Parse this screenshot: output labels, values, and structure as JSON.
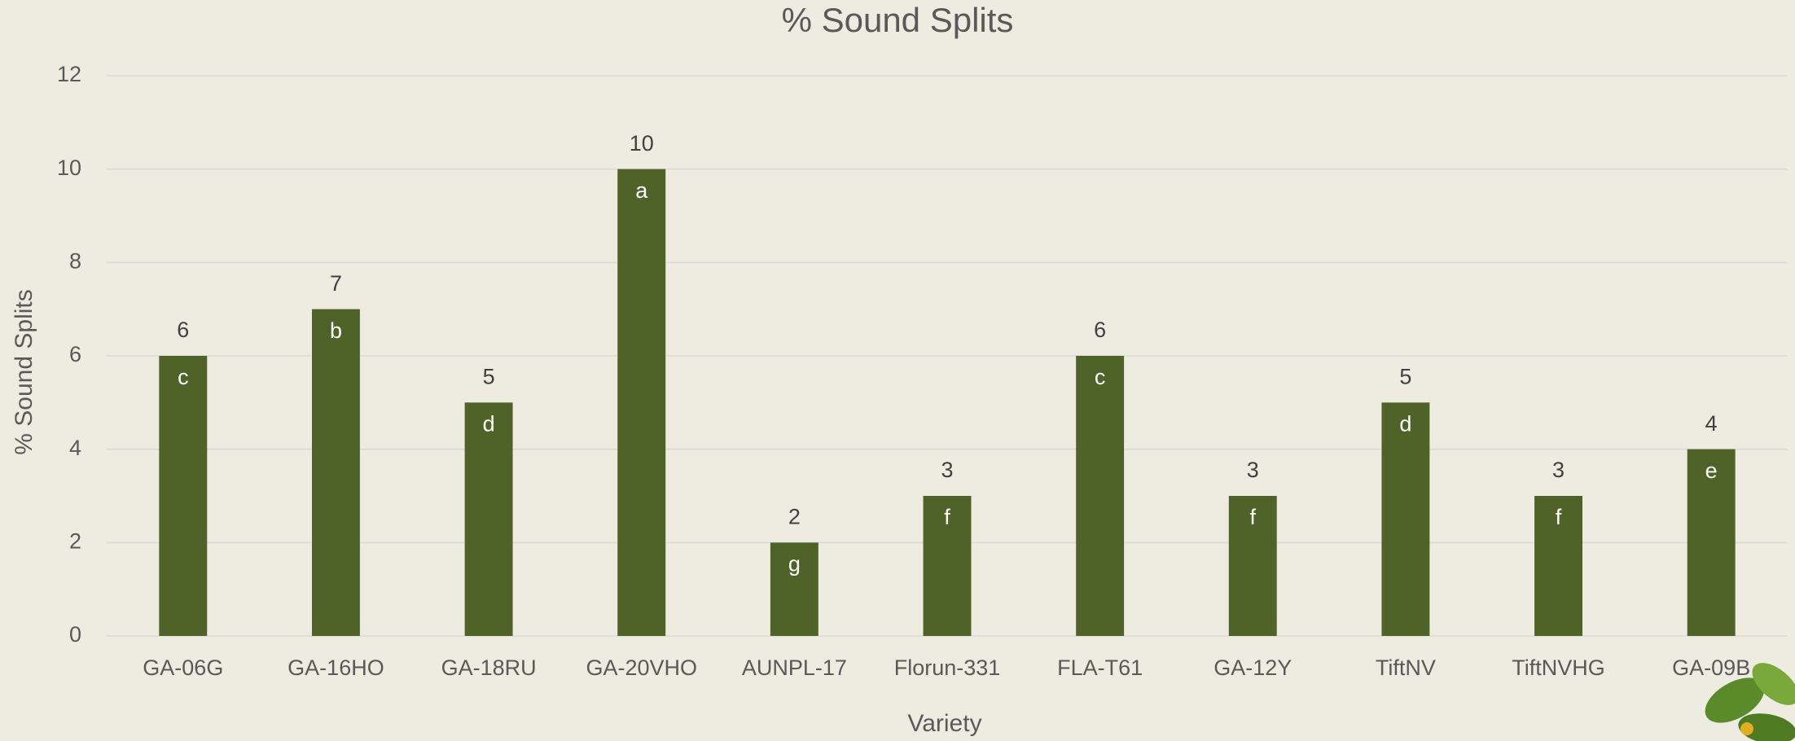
{
  "chart_data": {
    "type": "bar",
    "title": "% Sound Splits",
    "x_label": "Variety",
    "y_label": "% Sound Splits",
    "categories": [
      "GA-06G",
      "GA-16HO",
      "GA-18RU",
      "GA-20VHO",
      "AUNPL-17",
      "Florun-331",
      "FLA-T61",
      "GA-12Y",
      "TiftNV",
      "TiftNVHG",
      "GA-09B"
    ],
    "values": [
      6,
      7,
      5,
      10,
      2,
      3,
      6,
      3,
      5,
      3,
      4
    ],
    "letters": [
      "c",
      "b",
      "d",
      "a",
      "g",
      "f",
      "c",
      "f",
      "d",
      "f",
      "e"
    ],
    "color": "#4f6228",
    "ylim": [
      0,
      12
    ],
    "yticks": [
      0,
      2,
      4,
      6,
      8,
      10,
      12
    ],
    "grid": true
  }
}
